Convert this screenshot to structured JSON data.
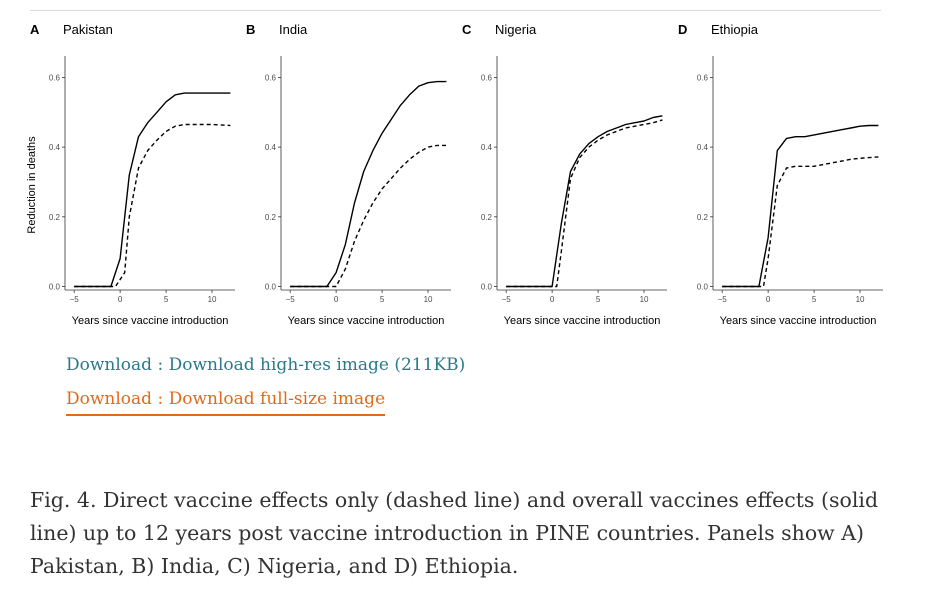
{
  "chart_data": [
    {
      "type": "line",
      "letter": "A",
      "title": "Pakistan",
      "xlabel": "Years since vaccine introduction",
      "ylabel": "Reduction in deaths",
      "xlim": [
        -6,
        12.5
      ],
      "ylim": [
        -0.01,
        0.65
      ],
      "xticks": [
        -5,
        0,
        5,
        10
      ],
      "yticks": [
        0.0,
        0.2,
        0.4,
        0.6
      ],
      "series": [
        {
          "name": "Overall vaccine effects",
          "style": "solid",
          "x": [
            -5,
            -1,
            0,
            1,
            2,
            3,
            4,
            5,
            6,
            7,
            8,
            10,
            12
          ],
          "y": [
            0,
            0,
            0.08,
            0.32,
            0.43,
            0.47,
            0.5,
            0.53,
            0.55,
            0.555,
            0.555,
            0.555,
            0.555
          ]
        },
        {
          "name": "Direct vaccine effects only",
          "style": "dashed",
          "x": [
            -5,
            -0.5,
            0.5,
            1,
            2,
            3,
            4,
            5,
            6,
            7,
            8,
            10,
            12
          ],
          "y": [
            0,
            0,
            0.04,
            0.2,
            0.34,
            0.39,
            0.42,
            0.445,
            0.46,
            0.465,
            0.465,
            0.465,
            0.462
          ]
        }
      ]
    },
    {
      "type": "line",
      "letter": "B",
      "title": "India",
      "xlabel": "Years since vaccine introduction",
      "ylabel": "",
      "xlim": [
        -6,
        12.5
      ],
      "ylim": [
        -0.01,
        0.65
      ],
      "xticks": [
        -5,
        0,
        5,
        10
      ],
      "yticks": [
        0.0,
        0.2,
        0.4,
        0.6
      ],
      "series": [
        {
          "name": "Overall vaccine effects",
          "style": "solid",
          "x": [
            -5,
            -1,
            0,
            1,
            2,
            3,
            4,
            5,
            6,
            7,
            8,
            9,
            10,
            11,
            12
          ],
          "y": [
            0,
            0,
            0.04,
            0.12,
            0.24,
            0.33,
            0.39,
            0.44,
            0.48,
            0.52,
            0.55,
            0.575,
            0.585,
            0.588,
            0.588
          ]
        },
        {
          "name": "Direct vaccine effects only",
          "style": "dashed",
          "x": [
            -5,
            0,
            1,
            2,
            3,
            4,
            5,
            6,
            7,
            8,
            9,
            10,
            11,
            12
          ],
          "y": [
            0,
            0,
            0.05,
            0.13,
            0.19,
            0.24,
            0.28,
            0.31,
            0.34,
            0.365,
            0.385,
            0.4,
            0.405,
            0.405
          ]
        }
      ]
    },
    {
      "type": "line",
      "letter": "C",
      "title": "Nigeria",
      "xlabel": "Years since vaccine introduction",
      "ylabel": "",
      "xlim": [
        -6,
        12.5
      ],
      "ylim": [
        -0.01,
        0.65
      ],
      "xticks": [
        -5,
        0,
        5,
        10
      ],
      "yticks": [
        0.0,
        0.2,
        0.4,
        0.6
      ],
      "series": [
        {
          "name": "Overall vaccine effects",
          "style": "solid",
          "x": [
            -5,
            0,
            1,
            2,
            3,
            4,
            5,
            6,
            7,
            8,
            9,
            10,
            11,
            12
          ],
          "y": [
            0,
            0,
            0.18,
            0.33,
            0.38,
            0.41,
            0.43,
            0.445,
            0.455,
            0.465,
            0.47,
            0.475,
            0.485,
            0.49
          ]
        },
        {
          "name": "Direct vaccine effects only",
          "style": "dashed",
          "x": [
            -5,
            0.5,
            1,
            2,
            3,
            4,
            5,
            6,
            7,
            8,
            9,
            10,
            11,
            12
          ],
          "y": [
            0,
            0,
            0.1,
            0.31,
            0.37,
            0.4,
            0.42,
            0.435,
            0.445,
            0.455,
            0.46,
            0.465,
            0.47,
            0.478
          ]
        }
      ]
    },
    {
      "type": "line",
      "letter": "D",
      "title": "Ethiopia",
      "xlabel": "Years since vaccine introduction",
      "ylabel": "",
      "xlim": [
        -6,
        12.5
      ],
      "ylim": [
        -0.01,
        0.65
      ],
      "xticks": [
        -5,
        0,
        5,
        10
      ],
      "yticks": [
        0.0,
        0.2,
        0.4,
        0.6
      ],
      "series": [
        {
          "name": "Overall vaccine effects",
          "style": "solid",
          "x": [
            -5,
            -1,
            0,
            1,
            2,
            3,
            4,
            5,
            6,
            7,
            8,
            9,
            10,
            11,
            12
          ],
          "y": [
            0,
            0,
            0.14,
            0.39,
            0.425,
            0.43,
            0.43,
            0.435,
            0.44,
            0.445,
            0.45,
            0.455,
            0.46,
            0.462,
            0.462
          ]
        },
        {
          "name": "Direct vaccine effects only",
          "style": "dashed",
          "x": [
            -5,
            -0.5,
            0,
            1,
            2,
            3,
            4,
            5,
            6,
            7,
            8,
            9,
            10,
            11,
            12
          ],
          "y": [
            0,
            0,
            0.08,
            0.29,
            0.34,
            0.345,
            0.345,
            0.345,
            0.35,
            0.355,
            0.36,
            0.365,
            0.368,
            0.37,
            0.372
          ]
        }
      ]
    }
  ],
  "downloads": {
    "high_res": "Download : Download high-res image (211KB)",
    "full_size": "Download : Download full-size image"
  },
  "caption": "Fig. 4. Direct vaccine effects only (dashed line) and overall vaccines effects (solid line) up to 12 years post vaccine introduction in PINE countries. Panels show A) Pakistan, B) India, C) Nigeria, and D) Ethiopia."
}
